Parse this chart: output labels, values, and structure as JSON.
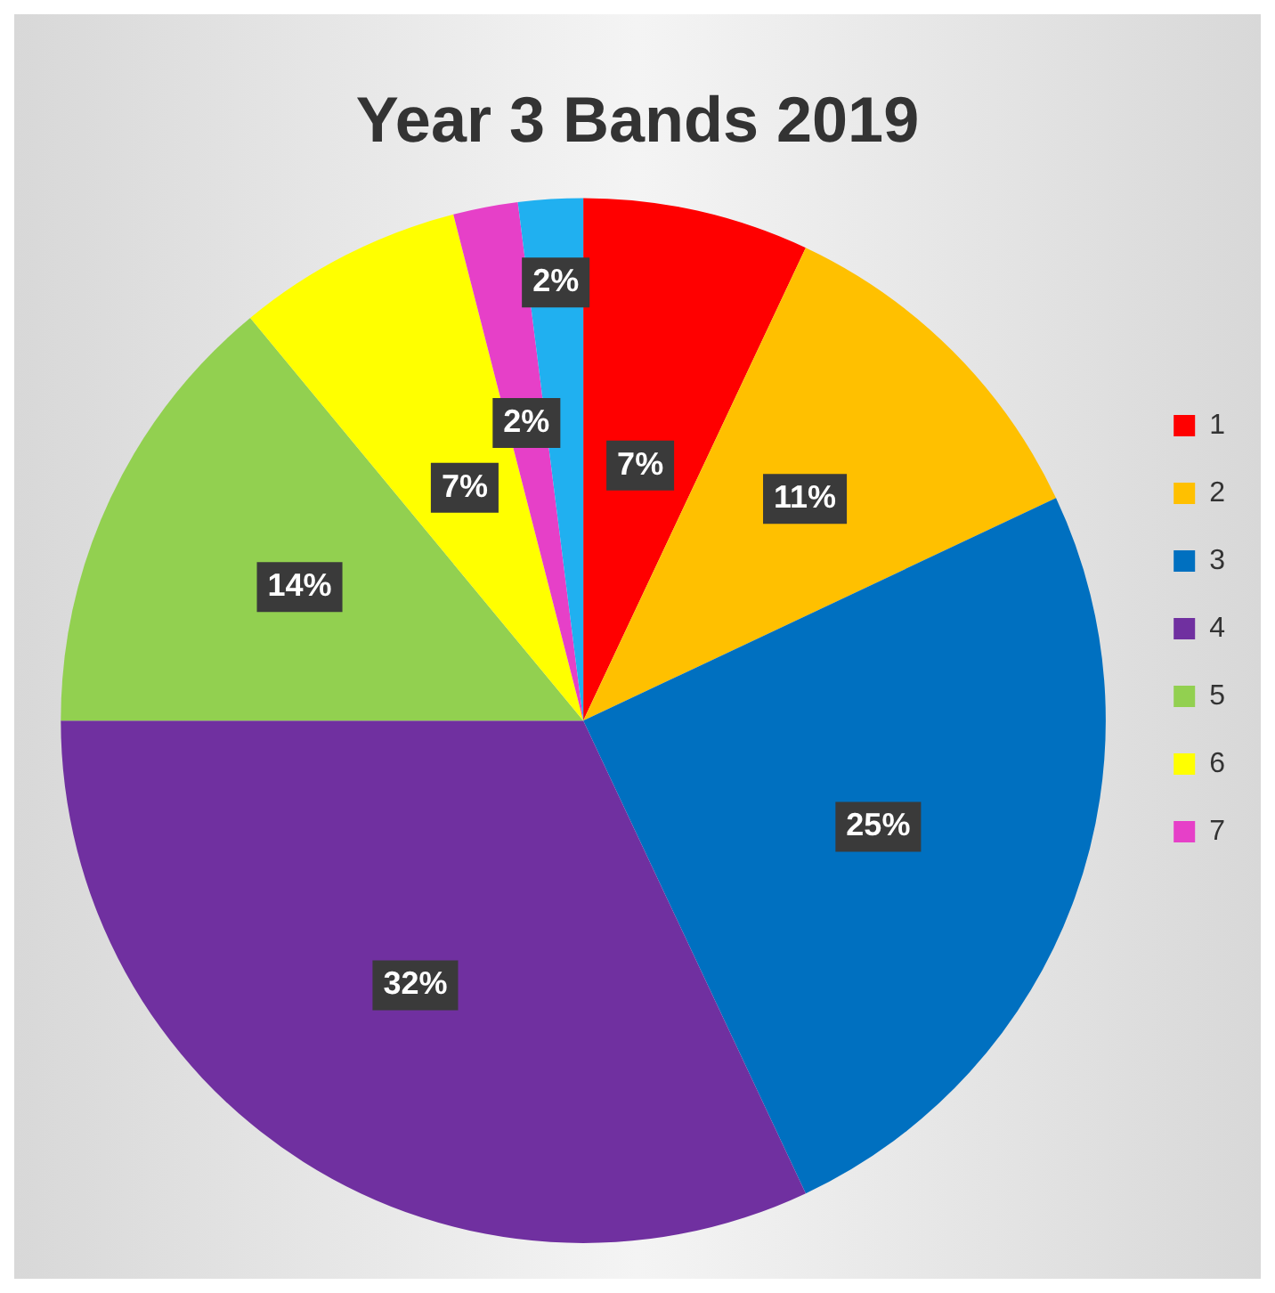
{
  "chart_data": {
    "type": "pie",
    "title": "Year 3 Bands 2019",
    "categories": [
      "1",
      "2",
      "3",
      "4",
      "5",
      "6",
      "7",
      null
    ],
    "values": [
      7,
      11,
      25,
      32,
      14,
      7,
      2,
      2
    ],
    "value_labels": [
      "7%",
      "11%",
      "25%",
      "32%",
      "14%",
      "7%",
      "2%",
      "2%"
    ],
    "colors": [
      "#ff0000",
      "#ffc000",
      "#0070c0",
      "#7030a0",
      "#92d050",
      "#ffff00",
      "#e640c8",
      "#20b0f0"
    ],
    "legend": "right"
  }
}
